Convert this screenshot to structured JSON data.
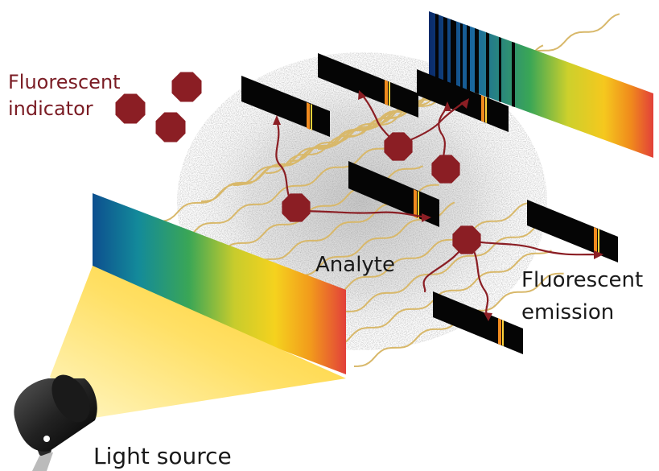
{
  "labels": {
    "indicator_line1": "Fluorescent",
    "indicator_line2": "indicator",
    "analyte": "Analyte",
    "emission_line1": "Fluorescent",
    "emission_line2": "emission",
    "light_source": "Light source"
  },
  "colors": {
    "indicator": "#8b1e24",
    "indicator_label": "#7a1c24",
    "wave": "#d8b86a",
    "label": "#1a1a1a",
    "spectrum": [
      "#0d4f8f",
      "#138a9a",
      "#3aa656",
      "#c8cc2c",
      "#f5d21e",
      "#f29a1c",
      "#e2403a"
    ],
    "strip": "#050505",
    "emission_line": "#f08a1e",
    "beam": [
      "#fff6c4",
      "#ffd23a"
    ]
  },
  "icons": {
    "molecule": "octagon-icon",
    "lamp": "spotlight-icon"
  }
}
